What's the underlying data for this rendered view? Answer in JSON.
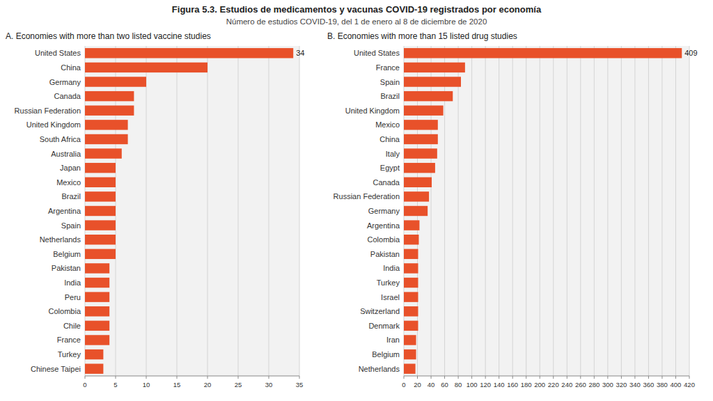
{
  "chart_data": [
    {
      "type": "bar",
      "orientation": "horizontal",
      "title": "Figura 5.3. Estudios de medicamentos y vacunas COVID-19 registrados por economía",
      "subtitle": "Número de estudios COVID-19, del 1 de enero al 8 de diciembre de 2020",
      "annotations": [
        "A. Economies with more than two listed vaccine studies"
      ],
      "categories": [
        "United States",
        "China",
        "Germany",
        "Canada",
        "Russian Federation",
        "United Kingdom",
        "South Africa",
        "Australia",
        "Japan",
        "Mexico",
        "Brazil",
        "Argentina",
        "Spain",
        "Netherlands",
        "Belgium",
        "Pakistan",
        "India",
        "Peru",
        "Colombia",
        "Chile",
        "France",
        "Turkey",
        "Chinese Taipei"
      ],
      "values": [
        34,
        20,
        10,
        8,
        8,
        7,
        7,
        6,
        5,
        5,
        5,
        5,
        5,
        5,
        5,
        4,
        4,
        4,
        4,
        4,
        4,
        3,
        3
      ],
      "value_labels": [
        "34",
        null,
        null,
        null,
        null,
        null,
        null,
        null,
        null,
        null,
        null,
        null,
        null,
        null,
        null,
        null,
        null,
        null,
        null,
        null,
        null,
        null,
        null
      ],
      "color": "#E8512A",
      "xlim": [
        0,
        35
      ],
      "xticks": [
        0,
        5,
        10,
        15,
        20,
        25,
        30,
        35
      ],
      "grid": true
    },
    {
      "type": "bar",
      "orientation": "horizontal",
      "annotations": [
        "B. Economies with more than 15 listed drug studies"
      ],
      "categories": [
        "United States",
        "France",
        "Spain",
        "Brazil",
        "United Kingdom",
        "Mexico",
        "China",
        "Italy",
        "Egypt",
        "Canada",
        "Russian Federation",
        "Germany",
        "Argentina",
        "Colombia",
        "Pakistan",
        "India",
        "Turkey",
        "Israel",
        "Switzerland",
        "Denmark",
        "Iran",
        "Belgium",
        "Netherlands"
      ],
      "values": [
        409,
        90,
        84,
        72,
        58,
        50,
        50,
        49,
        46,
        41,
        37,
        35,
        23,
        22,
        21,
        21,
        21,
        21,
        21,
        21,
        18,
        18,
        17
      ],
      "value_labels": [
        "409",
        null,
        null,
        null,
        null,
        null,
        null,
        null,
        null,
        null,
        null,
        null,
        null,
        null,
        null,
        null,
        null,
        null,
        null,
        null,
        null,
        null,
        null
      ],
      "color": "#E8512A",
      "xlim": [
        0,
        420
      ],
      "xticks": [
        0,
        20,
        40,
        60,
        80,
        100,
        120,
        140,
        160,
        180,
        200,
        220,
        240,
        260,
        280,
        300,
        320,
        340,
        360,
        380,
        400,
        420
      ],
      "grid": true
    }
  ]
}
